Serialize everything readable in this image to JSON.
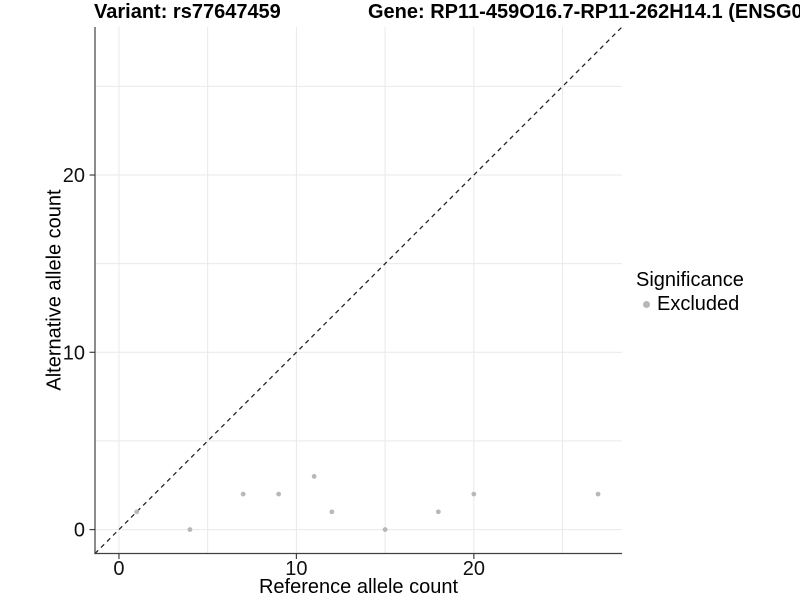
{
  "titles": {
    "variant": "Variant: rs77647459",
    "gene": "Gene: RP11-459O16.7-RP11-262H14.1 (ENSG0"
  },
  "chart_data": {
    "type": "scatter",
    "xlabel": "Reference allele count",
    "ylabel": "Alternative allele count",
    "xlim": [
      -1.35,
      28.35
    ],
    "ylim": [
      -1.35,
      28.35
    ],
    "x_ticks": [
      0,
      10,
      20
    ],
    "y_ticks": [
      0,
      10,
      20
    ],
    "x_gridlines": [
      0,
      5,
      10,
      15,
      20,
      25
    ],
    "y_gridlines": [
      0,
      5,
      10,
      15,
      20,
      25
    ],
    "grid": "on",
    "legend_position": "right",
    "series": [
      {
        "name": "Excluded",
        "color": "#b8b8b8",
        "points": [
          {
            "x": 1,
            "y": 1
          },
          {
            "x": 4,
            "y": 0
          },
          {
            "x": 7,
            "y": 2
          },
          {
            "x": 9,
            "y": 2
          },
          {
            "x": 11,
            "y": 3
          },
          {
            "x": 12,
            "y": 1
          },
          {
            "x": 15,
            "y": 0
          },
          {
            "x": 18,
            "y": 1
          },
          {
            "x": 20,
            "y": 2
          },
          {
            "x": 27,
            "y": 2
          }
        ]
      }
    ],
    "reference_line": {
      "kind": "identity y=x",
      "style": "dashed",
      "color": "#262626"
    }
  },
  "legend": {
    "title": "Significance",
    "items": [
      {
        "label": "Excluded",
        "marker_color": "#b8b8b8"
      }
    ]
  },
  "style": {
    "background": "#ffffff",
    "grid_color": "#e9e9e9",
    "axis_color": "#404040",
    "tick_label_color": "#111111"
  }
}
